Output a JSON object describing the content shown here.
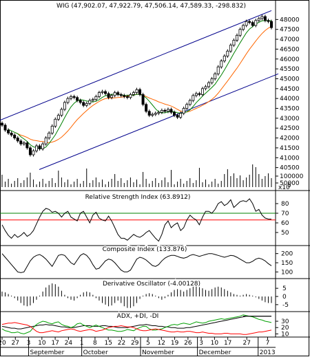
{
  "chart_data": [
    {
      "type": "candlestick",
      "title": "WIG (47,902.07, 47,922.79, 47,506.14, 47,589.33, -298.832)",
      "ylim": [
        40000,
        48500
      ],
      "y_ticks": [
        40500,
        41000,
        41500,
        42000,
        42500,
        43000,
        43500,
        44000,
        44500,
        45000,
        45500,
        46000,
        46500,
        47000,
        47500,
        48000
      ],
      "y_tick_labels": [
        "40500",
        "41000",
        "41500",
        "42000",
        "42500",
        "43000",
        "43500",
        "44000",
        "44500",
        "45000",
        "45500",
        "46000",
        "46500",
        "47000",
        "47500",
        "48000"
      ],
      "x_start_date": "2012-08-20",
      "x_end_date": "2013-01-09",
      "close": [
        42650,
        42400,
        42250,
        42150,
        42000,
        41850,
        41700,
        41750,
        41500,
        41150,
        41350,
        41600,
        41450,
        41700,
        42000,
        42250,
        42600,
        42950,
        43150,
        43450,
        43800,
        44000,
        44100,
        44050,
        43900,
        43800,
        43650,
        43750,
        43900,
        43950,
        44100,
        44300,
        44350,
        44250,
        44050,
        44150,
        44300,
        44200,
        44150,
        44100,
        44050,
        44200,
        44300,
        44450,
        44200,
        43700,
        43350,
        43150,
        43200,
        43250,
        43300,
        43400,
        43350,
        43450,
        43300,
        43150,
        43050,
        43250,
        43500,
        43700,
        43900,
        44150,
        44250,
        44200,
        44500,
        44600,
        44800,
        45000,
        45250,
        45600,
        45900,
        46150,
        46400,
        46700,
        46950,
        47200,
        47500,
        47700,
        47900,
        47850,
        47700,
        47950,
        48050,
        48150,
        47950,
        47900,
        47589.33
      ],
      "volume_ticks": [
        100000,
        50000
      ],
      "volume_unit": "x10",
      "volume_unit_sup": "5"
    },
    {
      "type": "line",
      "title": "Relative Strength Index (63.8912)",
      "ylim": [
        40,
        90
      ],
      "y_ticks": [
        50,
        60,
        70,
        80
      ],
      "reference_lines": [
        70,
        30
      ],
      "values": [
        58,
        52,
        47,
        44,
        48,
        45,
        47,
        50,
        46,
        48,
        52,
        59,
        66,
        72,
        75,
        74,
        71,
        72,
        70,
        66,
        70,
        72,
        66,
        64,
        62,
        70,
        72,
        66,
        60,
        68,
        71,
        65,
        63,
        62,
        67,
        62,
        55,
        48,
        44,
        44,
        42,
        45,
        48,
        46,
        45,
        47,
        50,
        52,
        48,
        44,
        41,
        48,
        58,
        62,
        55,
        58,
        60,
        52,
        55,
        63,
        68,
        65,
        63,
        58,
        66,
        72,
        72,
        70,
        74,
        80,
        82,
        78,
        80,
        84,
        76,
        79,
        82,
        83,
        82,
        85,
        80,
        72,
        74,
        68,
        65,
        64,
        63.8912
      ]
    },
    {
      "type": "line",
      "title": "Composite Index (133.876)",
      "ylim": [
        75,
        225
      ],
      "y_ticks": [
        100,
        150,
        200
      ],
      "values": [
        200,
        180,
        160,
        140,
        120,
        100,
        96,
        100,
        130,
        160,
        180,
        190,
        195,
        185,
        170,
        150,
        130,
        160,
        190,
        195,
        190,
        170,
        150,
        140,
        165,
        190,
        200,
        190,
        170,
        140,
        115,
        120,
        140,
        160,
        170,
        165,
        150,
        130,
        110,
        100,
        100,
        110,
        140,
        170,
        180,
        175,
        165,
        150,
        135,
        130,
        140,
        160,
        175,
        185,
        190,
        190,
        185,
        178,
        175,
        180,
        190,
        195,
        190,
        185,
        190,
        195,
        200,
        200,
        195,
        190,
        185,
        180,
        185,
        190,
        188,
        180,
        170,
        160,
        150,
        150,
        158,
        170,
        175,
        170,
        160,
        145,
        133.876
      ]
    },
    {
      "type": "bar",
      "title": "Derivative Oscillator (-4.00128)",
      "ylim": [
        -8,
        8
      ],
      "y_ticks": [
        5,
        0,
        -5
      ],
      "values": [
        3,
        2.5,
        1.5,
        0.5,
        -1,
        -2.5,
        -4,
        -5.5,
        -6,
        -5.5,
        -4,
        -2,
        0.5,
        3,
        5.5,
        7,
        8,
        7.5,
        6,
        3.5,
        1,
        -1,
        -2,
        -2.5,
        -1,
        1,
        2.5,
        3,
        2.5,
        1,
        -1,
        -2.5,
        -4,
        -5,
        -6,
        -5.5,
        -4,
        -2.5,
        -4,
        -6,
        -7,
        -7,
        -6,
        -4,
        -1.5,
        0.5,
        1.5,
        2,
        1.5,
        0.5,
        -1,
        -2,
        -1,
        1,
        2.5,
        4,
        4.5,
        4,
        3,
        4,
        5,
        6,
        6.5,
        6,
        5,
        4,
        3.5,
        4.5,
        5.5,
        6,
        5.5,
        4.5,
        3.5,
        2.5,
        1.5,
        1,
        0.5,
        1,
        1.5,
        1,
        0.5,
        -0.5,
        -1.5,
        -2.5,
        -3.5,
        -4,
        -4.00128
      ]
    },
    {
      "type": "line",
      "title": "ADX, +DI, -DI",
      "ylim": [
        5,
        42
      ],
      "y_ticks": [
        10,
        20,
        30
      ],
      "y_tick_labels": [
        "10",
        "20",
        "30"
      ],
      "x_tick_labels": [
        "20",
        "27",
        "3",
        "10",
        "17",
        "24",
        "1",
        "8",
        "15",
        "22",
        "29",
        "5",
        "12",
        "19",
        "26",
        "3",
        "10",
        "17",
        "27",
        "7"
      ],
      "x_tick_dates": [
        "2012-08-20",
        "2012-08-27",
        "2012-09-03",
        "2012-09-10",
        "2012-09-17",
        "2012-09-24",
        "2012-10-01",
        "2012-10-08",
        "2012-10-15",
        "2012-10-22",
        "2012-10-29",
        "2012-11-05",
        "2012-11-12",
        "2012-11-19",
        "2012-11-26",
        "2012-12-03",
        "2012-12-10",
        "2012-12-17",
        "2012-12-27",
        "2013-01-07"
      ],
      "month_labels": [
        "September",
        "October",
        "November",
        "December",
        "2013"
      ],
      "month_dates": [
        "2012-09-03",
        "2012-10-01",
        "2012-11-01",
        "2012-12-01",
        "2013-01-02"
      ],
      "series": [
        {
          "name": "ADX",
          "color": "#000000",
          "values": [
            22,
            21,
            20,
            19,
            19,
            18,
            18,
            19,
            20,
            21,
            22,
            23,
            24,
            24,
            25,
            24,
            24,
            23,
            22,
            21,
            21,
            20,
            20,
            20,
            21,
            22,
            23,
            23,
            23,
            22,
            22,
            22,
            23,
            23,
            22,
            22,
            21,
            20,
            20,
            20,
            20,
            21,
            22,
            23,
            24,
            24,
            25,
            24,
            23,
            23,
            22,
            22,
            21,
            21,
            20,
            20,
            19,
            19,
            19,
            20,
            20,
            21,
            22,
            23,
            24,
            25,
            26,
            27,
            28,
            29,
            30,
            31,
            32,
            33,
            34,
            35,
            36,
            37,
            38,
            38,
            38,
            38,
            38,
            38,
            38,
            38,
            38
          ]
        },
        {
          "name": "+DI",
          "color": "#00a000",
          "values": [
            18,
            15,
            14,
            12,
            12,
            13,
            11,
            10,
            12,
            14,
            20,
            25,
            28,
            30,
            29,
            27,
            26,
            28,
            29,
            25,
            23,
            22,
            20,
            22,
            26,
            27,
            24,
            22,
            20,
            22,
            24,
            22,
            20,
            18,
            16,
            16,
            15,
            14,
            14,
            15,
            17,
            16,
            15,
            18,
            20,
            22,
            22,
            18,
            16,
            16,
            17,
            18,
            20,
            22,
            24,
            25,
            24,
            26,
            27,
            26,
            25,
            27,
            29,
            28,
            27,
            28,
            30,
            31,
            32,
            33,
            34,
            33,
            34,
            35,
            36,
            37,
            38,
            40,
            39,
            38,
            37,
            35,
            33,
            32,
            30,
            29,
            28
          ]
        },
        {
          "name": "-DI",
          "color": "#ff0000",
          "values": [
            25,
            26,
            27,
            27,
            28,
            27,
            26,
            25,
            24,
            22,
            18,
            14,
            12,
            12,
            13,
            14,
            15,
            14,
            13,
            15,
            16,
            17,
            18,
            17,
            15,
            14,
            15,
            16,
            17,
            16,
            14,
            15,
            16,
            18,
            20,
            21,
            22,
            22,
            23,
            22,
            21,
            21,
            20,
            18,
            16,
            15,
            15,
            16,
            17,
            18,
            17,
            16,
            15,
            14,
            13,
            13,
            14,
            13,
            13,
            14,
            14,
            13,
            12,
            12,
            13,
            12,
            11,
            11,
            10,
            10,
            10,
            11,
            11,
            10,
            10,
            10,
            10,
            9,
            9,
            10,
            11,
            12,
            13,
            13,
            14,
            15,
            16
          ]
        }
      ]
    }
  ],
  "colors": {
    "candle_up": "#ffffff",
    "candle_down": "#000000",
    "channel": "#00008b",
    "ma_short": "#008000",
    "ma_long": "#ff6600",
    "rsi_line_70": "#008000",
    "rsi_line_30": "#ff0000"
  }
}
